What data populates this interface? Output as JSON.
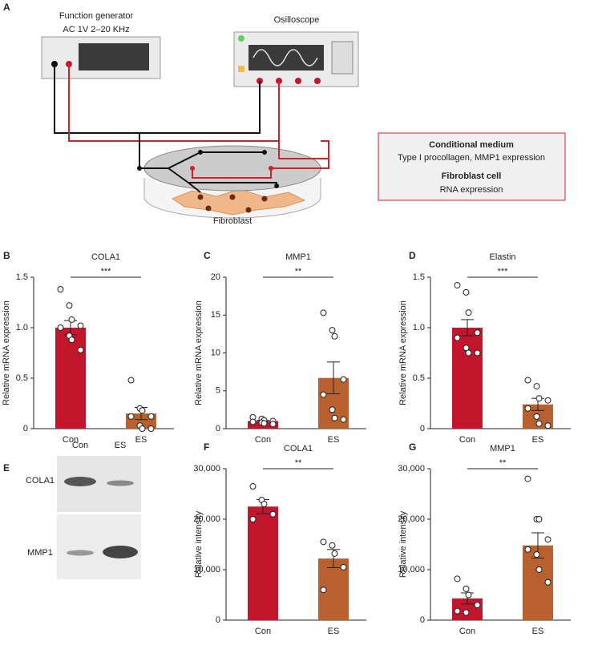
{
  "diagram": {
    "panel": "A",
    "generator": "Function generator",
    "generator_setting": "AC 1V 2–20 KHz",
    "scope": "Osilloscope",
    "box_title1": "Conditional medium",
    "box_text1": "Type I procollagen, MMP1 expression",
    "box_title2": "Fibroblast cell",
    "box_text2": "RNA expression",
    "dish": "Fibroblast"
  },
  "blot": {
    "panel": "E",
    "lanes": [
      "Con",
      "ES"
    ],
    "rows": [
      "COLA1",
      "MMP1"
    ]
  },
  "chart_data": [
    {
      "type": "bar",
      "panel": "B",
      "title": "COLA1",
      "y_label": "Relative mRNA expression",
      "categories": [
        "Con",
        "ES"
      ],
      "values": [
        1.0,
        0.15
      ],
      "errors": [
        0.07,
        0.06
      ],
      "colors": [
        "#c3162d",
        "#b8612f"
      ],
      "points": [
        [
          1.38,
          1.22,
          1.08,
          1.02,
          1.0,
          0.92,
          0.88,
          0.78
        ],
        [
          0.48,
          0.2,
          0.18,
          0.12,
          0.12,
          0.03,
          0.0,
          0.0
        ]
      ],
      "significance": "***",
      "ylim": [
        0,
        1.5
      ],
      "yticks": [
        0,
        0.5,
        {
          "value": 1,
          "label": "1.0"
        },
        1.5
      ]
    },
    {
      "type": "bar",
      "panel": "C",
      "title": "MMP1",
      "y_label": "Relative mRNA expression",
      "categories": [
        "Con",
        "ES"
      ],
      "values": [
        1.0,
        6.7
      ],
      "errors": [
        0.1,
        2.1
      ],
      "colors": [
        "#c3162d",
        "#b8612f"
      ],
      "points": [
        [
          1.5,
          1.3,
          1.1,
          1.0,
          0.9,
          0.8,
          0.7,
          0.6
        ],
        [
          15.3,
          13.0,
          12.2,
          6.5,
          4.5,
          2.5,
          1.4,
          1.2
        ]
      ],
      "significance": "**",
      "ylim": [
        0,
        20
      ],
      "yticks": [
        0,
        5,
        10,
        15,
        20
      ]
    },
    {
      "type": "bar",
      "panel": "D",
      "title": "Elastin",
      "y_label": "Relative mRNA expression",
      "categories": [
        "Con",
        "ES"
      ],
      "values": [
        1.0,
        0.24
      ],
      "errors": [
        0.08,
        0.06
      ],
      "colors": [
        "#c3162d",
        "#b8612f"
      ],
      "points": [
        [
          1.42,
          1.35,
          1.15,
          0.95,
          0.9,
          0.8,
          0.75,
          0.75
        ],
        [
          0.48,
          0.42,
          0.3,
          0.28,
          0.2,
          0.12,
          0.05,
          0.03
        ]
      ],
      "significance": "***",
      "ylim": [
        0,
        1.5
      ],
      "yticks": [
        0,
        0.5,
        {
          "value": 1,
          "label": "1.0"
        },
        1.5
      ]
    },
    {
      "type": "bar",
      "panel": "F",
      "title": "COLA1",
      "y_label": "Relative intensity",
      "categories": [
        "Con",
        "ES"
      ],
      "values": [
        22500,
        12200
      ],
      "errors": [
        1400,
        1800
      ],
      "colors": [
        "#c3162d",
        "#b8612f"
      ],
      "points": [
        [
          26500,
          23800,
          23000,
          21000,
          20000
        ],
        [
          15500,
          14800,
          13200,
          10500,
          6000
        ]
      ],
      "significance": "**",
      "ylim": [
        0,
        30000
      ],
      "yticks": [
        0,
        {
          "value": 10000,
          "label": "10,000"
        },
        {
          "value": 20000,
          "label": "20,000"
        },
        {
          "value": 30000,
          "label": "30,000"
        }
      ]
    },
    {
      "type": "bar",
      "panel": "G",
      "title": "MMP1",
      "y_label": "Relative intensity",
      "categories": [
        "Con",
        "ES"
      ],
      "values": [
        4300,
        14800
      ],
      "errors": [
        1100,
        2500
      ],
      "colors": [
        "#c3162d",
        "#b8612f"
      ],
      "points": [
        [
          8200,
          6200,
          5000,
          3000,
          1800,
          1500
        ],
        [
          28000,
          20000,
          20000,
          16000,
          14000,
          13000,
          10000,
          7500
        ]
      ],
      "significance": "**",
      "ylim": [
        0,
        30000
      ],
      "yticks": [
        0,
        {
          "value": 10000,
          "label": "10,000"
        },
        {
          "value": 20000,
          "label": "20,000"
        },
        {
          "value": 30000,
          "label": "30,000"
        }
      ]
    }
  ]
}
